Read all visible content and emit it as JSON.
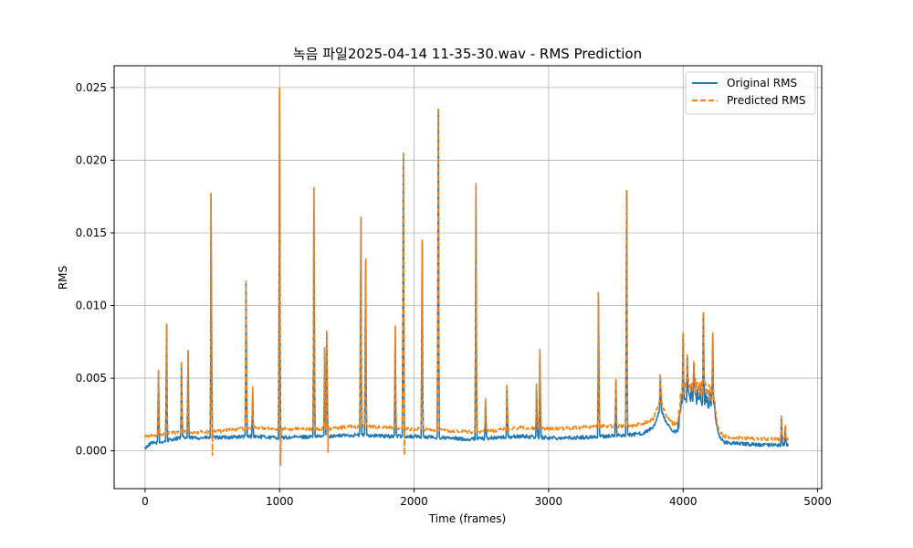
{
  "chart_data": {
    "type": "line",
    "title": "녹음 파일2025-04-14 11-35-30.wav - RMS Prediction",
    "xlabel": "Time (frames)",
    "ylabel": "RMS",
    "xlim": [
      -230,
      5030
    ],
    "ylim": [
      -0.0026,
      0.0265
    ],
    "xticks": [
      0,
      1000,
      2000,
      3000,
      4000,
      5000
    ],
    "yticks": [
      0.0,
      0.005,
      0.01,
      0.015,
      0.02,
      0.025
    ],
    "xtick_labels": [
      "0",
      "1000",
      "2000",
      "3000",
      "4000",
      "5000"
    ],
    "ytick_labels": [
      "0.000",
      "0.005",
      "0.010",
      "0.015",
      "0.020",
      "0.025"
    ],
    "grid": true,
    "legend_position": "top-right",
    "series": [
      {
        "name": "Original RMS",
        "color": "#1f77b4",
        "style": "solid",
        "baseline": [
          [
            0,
            0.0002
          ],
          [
            40,
            0.0005
          ],
          [
            120,
            0.0006
          ],
          [
            250,
            0.0009
          ],
          [
            500,
            0.0009
          ],
          [
            800,
            0.001
          ],
          [
            1000,
            0.0009
          ],
          [
            1300,
            0.001
          ],
          [
            1600,
            0.0011
          ],
          [
            1800,
            0.001
          ],
          [
            2000,
            0.001
          ],
          [
            2200,
            0.0009
          ],
          [
            2400,
            0.0008
          ],
          [
            2600,
            0.0009
          ],
          [
            2800,
            0.001
          ],
          [
            3000,
            0.0009
          ],
          [
            3200,
            0.0009
          ],
          [
            3400,
            0.001
          ],
          [
            3600,
            0.0011
          ],
          [
            3700,
            0.0012
          ],
          [
            3780,
            0.0016
          ],
          [
            3830,
            0.003
          ],
          [
            3870,
            0.002
          ],
          [
            3920,
            0.0013
          ],
          [
            3960,
            0.0013
          ],
          [
            3990,
            0.0035
          ],
          [
            4050,
            0.004
          ],
          [
            4100,
            0.0038
          ],
          [
            4150,
            0.0036
          ],
          [
            4200,
            0.0035
          ],
          [
            4230,
            0.003
          ],
          [
            4260,
            0.0012
          ],
          [
            4300,
            0.0006
          ],
          [
            4400,
            0.0005
          ],
          [
            4600,
            0.0004
          ],
          [
            4700,
            0.0004
          ],
          [
            4780,
            0.0004
          ]
        ],
        "spikes": [
          [
            100,
            0.0055
          ],
          [
            160,
            0.0085
          ],
          [
            270,
            0.006
          ],
          [
            320,
            0.0068
          ],
          [
            490,
            0.0177
          ],
          [
            750,
            0.0115
          ],
          [
            800,
            0.0043
          ],
          [
            1000,
            0.0248
          ],
          [
            1255,
            0.0181
          ],
          [
            1335,
            0.007
          ],
          [
            1350,
            0.0082
          ],
          [
            1605,
            0.016
          ],
          [
            1640,
            0.013
          ],
          [
            1860,
            0.0085
          ],
          [
            1920,
            0.0205
          ],
          [
            2060,
            0.0143
          ],
          [
            2180,
            0.0235
          ],
          [
            2460,
            0.0182
          ],
          [
            2530,
            0.0035
          ],
          [
            2690,
            0.0045
          ],
          [
            2910,
            0.0045
          ],
          [
            2935,
            0.0069
          ],
          [
            3370,
            0.0108
          ],
          [
            3500,
            0.0048
          ],
          [
            3580,
            0.0179
          ],
          [
            3830,
            0.0052
          ],
          [
            4000,
            0.008
          ],
          [
            4030,
            0.0065
          ],
          [
            4080,
            0.006
          ],
          [
            4150,
            0.0095
          ],
          [
            4220,
            0.008
          ],
          [
            4730,
            0.0022
          ],
          [
            4760,
            0.0017
          ]
        ]
      },
      {
        "name": "Predicted RMS",
        "color": "#ff7f0e",
        "style": "dashed",
        "baseline": [
          [
            0,
            0.001
          ],
          [
            100,
            0.0011
          ],
          [
            250,
            0.0013
          ],
          [
            500,
            0.0013
          ],
          [
            800,
            0.0016
          ],
          [
            1000,
            0.0015
          ],
          [
            1300,
            0.0015
          ],
          [
            1600,
            0.0017
          ],
          [
            1800,
            0.0016
          ],
          [
            2000,
            0.0015
          ],
          [
            2200,
            0.0014
          ],
          [
            2400,
            0.0013
          ],
          [
            2600,
            0.0014
          ],
          [
            2800,
            0.0016
          ],
          [
            3000,
            0.0015
          ],
          [
            3200,
            0.0016
          ],
          [
            3400,
            0.0017
          ],
          [
            3600,
            0.0017
          ],
          [
            3700,
            0.0019
          ],
          [
            3780,
            0.0022
          ],
          [
            3830,
            0.0036
          ],
          [
            3870,
            0.0025
          ],
          [
            3920,
            0.0019
          ],
          [
            3960,
            0.0019
          ],
          [
            3990,
            0.0042
          ],
          [
            4050,
            0.0046
          ],
          [
            4100,
            0.0044
          ],
          [
            4150,
            0.0042
          ],
          [
            4200,
            0.004
          ],
          [
            4230,
            0.0035
          ],
          [
            4260,
            0.0015
          ],
          [
            4300,
            0.001
          ],
          [
            4400,
            0.0009
          ],
          [
            4600,
            0.0008
          ],
          [
            4700,
            0.0008
          ],
          [
            4780,
            0.0008
          ]
        ],
        "spikes": [
          [
            100,
            0.0056
          ],
          [
            160,
            0.0088
          ],
          [
            270,
            0.0062
          ],
          [
            320,
            0.0069
          ],
          [
            490,
            0.0177
          ],
          [
            750,
            0.0117
          ],
          [
            800,
            0.0044
          ],
          [
            1000,
            0.025
          ],
          [
            1255,
            0.0181
          ],
          [
            1335,
            0.0071
          ],
          [
            1350,
            0.0083
          ],
          [
            1605,
            0.0161
          ],
          [
            1640,
            0.0132
          ],
          [
            1860,
            0.0086
          ],
          [
            1920,
            0.0206
          ],
          [
            2060,
            0.0145
          ],
          [
            2180,
            0.0236
          ],
          [
            2460,
            0.0184
          ],
          [
            2530,
            0.0036
          ],
          [
            2690,
            0.0046
          ],
          [
            2910,
            0.0046
          ],
          [
            2935,
            0.007
          ],
          [
            3370,
            0.0109
          ],
          [
            3500,
            0.0049
          ],
          [
            3580,
            0.018
          ],
          [
            3830,
            0.0053
          ],
          [
            4000,
            0.0082
          ],
          [
            4030,
            0.0066
          ],
          [
            4080,
            0.0062
          ],
          [
            4150,
            0.0096
          ],
          [
            4220,
            0.0081
          ],
          [
            4730,
            0.0024
          ],
          [
            4760,
            0.0018
          ]
        ],
        "dips": [
          [
            490,
            -0.0003
          ],
          [
            1000,
            -0.001
          ],
          [
            1350,
            -0.0001
          ],
          [
            1920,
            -0.0003
          ]
        ]
      }
    ]
  }
}
